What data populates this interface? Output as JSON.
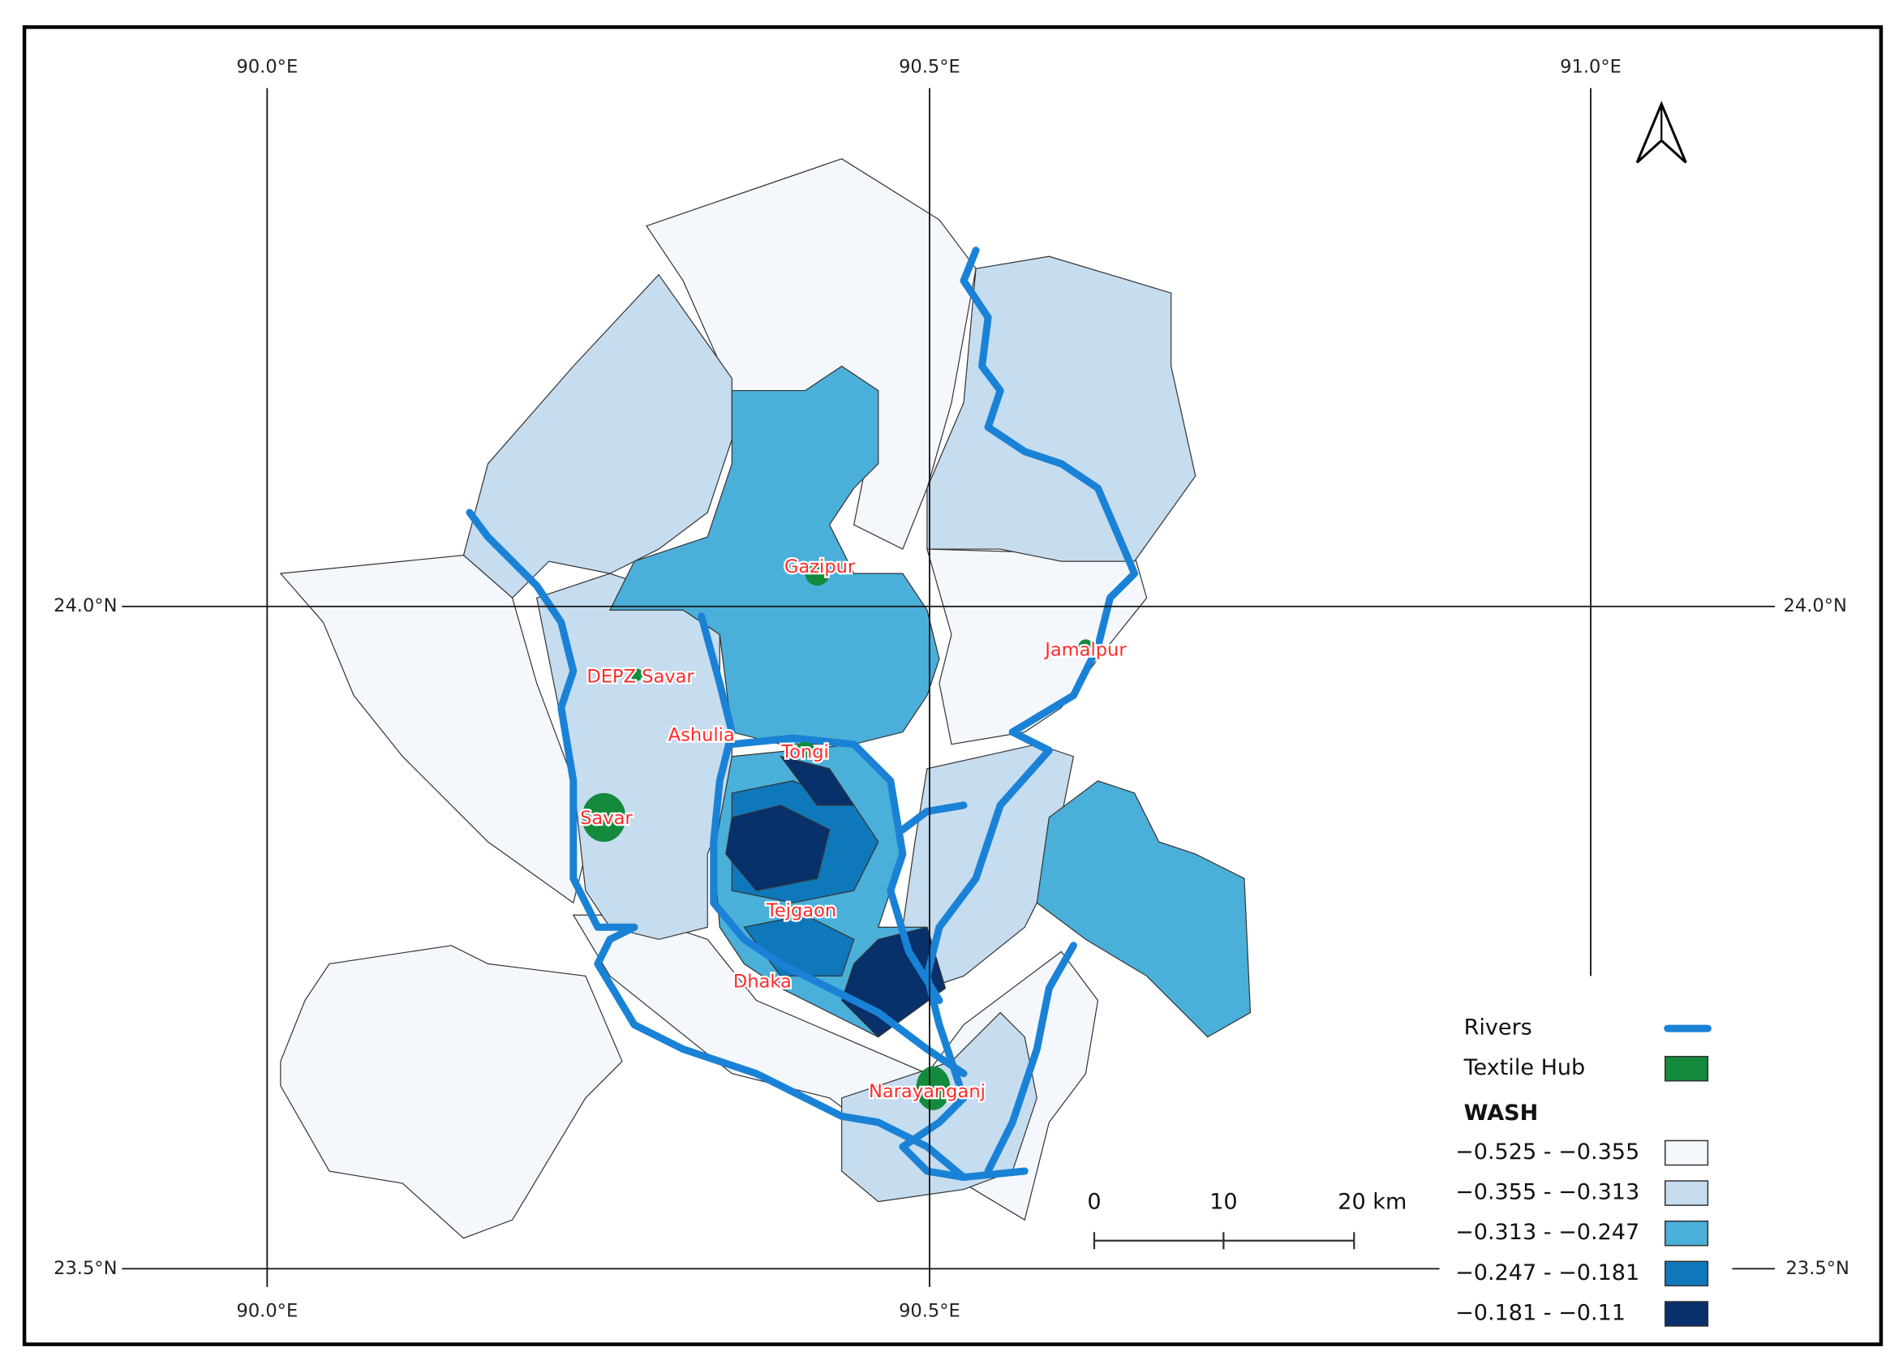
{
  "graticule": {
    "longitudes": [
      "90.0°E",
      "90.5°E",
      "91.0°E"
    ],
    "latitudes": [
      "24.0°N",
      "23.5°N"
    ]
  },
  "places": [
    "Gazipur",
    "Jamalpur",
    "DEPZ Savar",
    "Ashulia",
    "Tongi",
    "Savar",
    "Tejgaon",
    "Dhaka",
    "Narayanganj"
  ],
  "legend": {
    "rivers": "Rivers",
    "textile_hub": "Textile Hub",
    "title": "WASH",
    "classes": [
      {
        "label": "−0.525 - −0.355",
        "color": "#f4f8fc"
      },
      {
        "label": "−0.355 - −0.313",
        "color": "#c6dcef"
      },
      {
        "label": "−0.313 - −0.247",
        "color": "#4aafd9"
      },
      {
        "label": "−0.247 - −0.181",
        "color": "#0f78bb"
      },
      {
        "label": "−0.181 - −0.11",
        "color": "#08306b"
      }
    ]
  },
  "scale_bar": {
    "labels": [
      "0",
      "10",
      "20 km"
    ]
  }
}
